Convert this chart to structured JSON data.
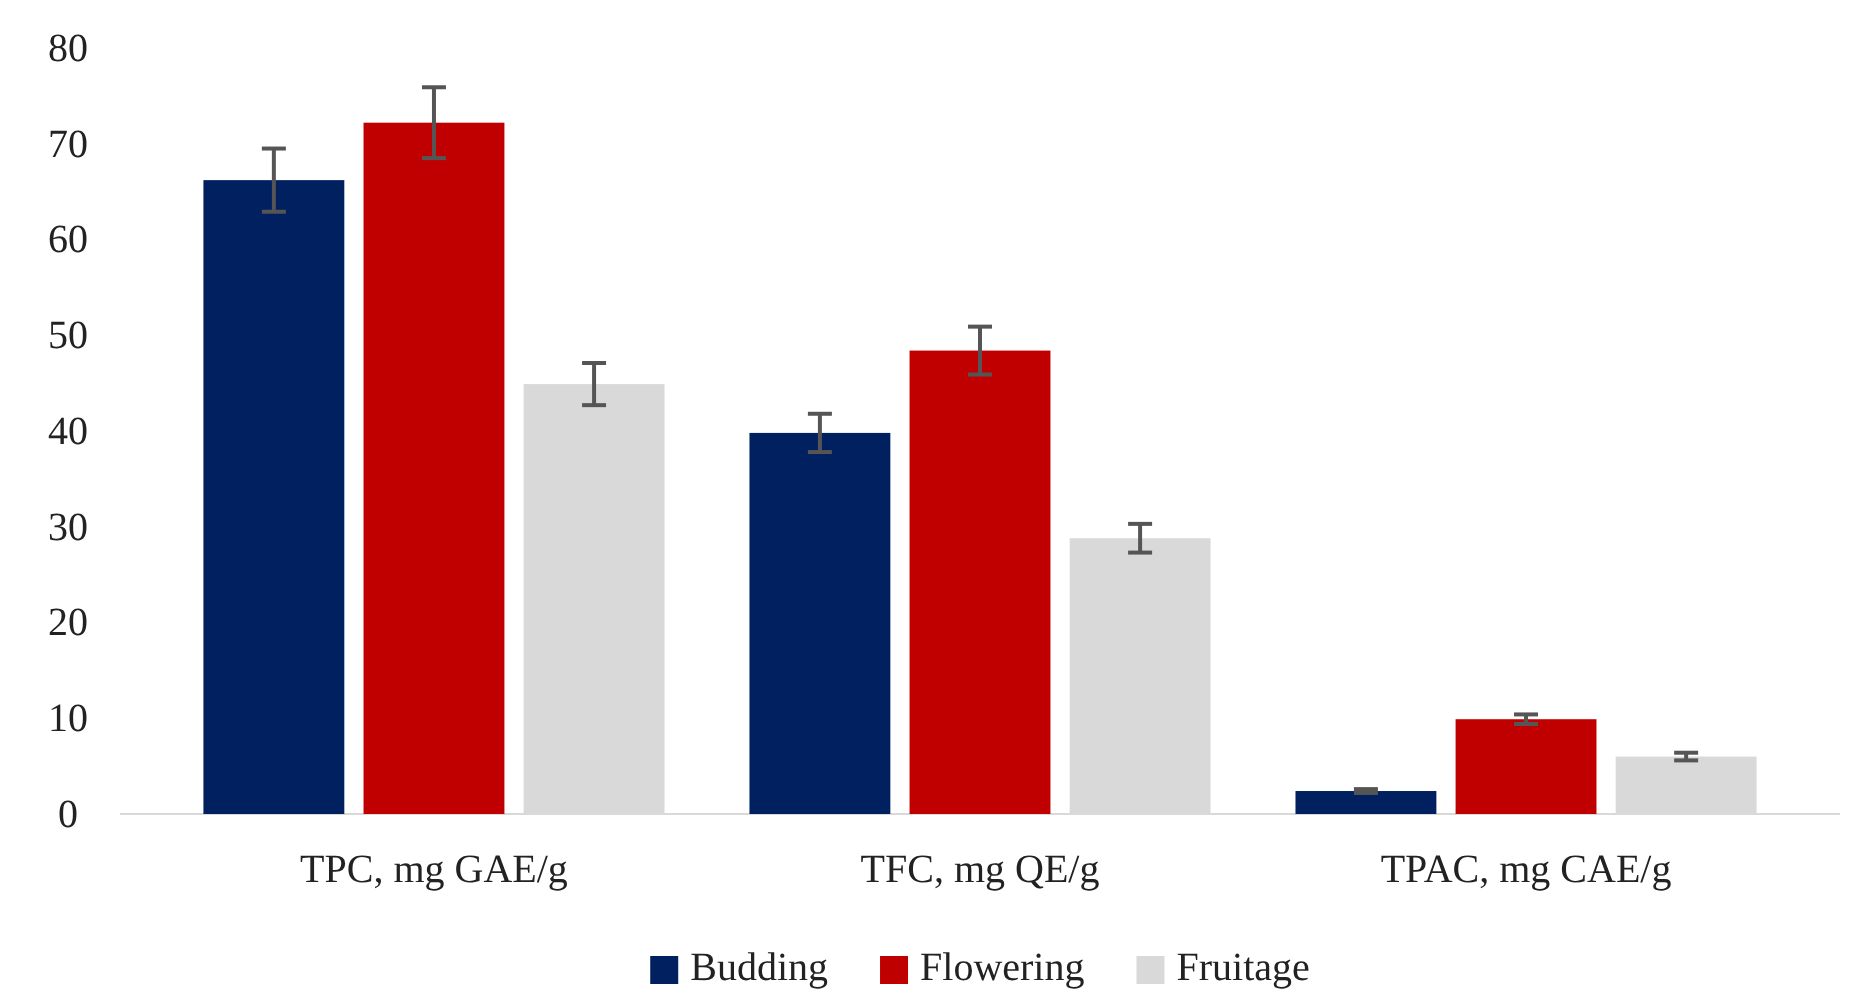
{
  "chart_data": {
    "type": "bar",
    "categories": [
      "TPC, mg GAE/g",
      "TFC, mg QE/g",
      "TPAC, mg CAE/g"
    ],
    "series": [
      {
        "name": "Budding",
        "color": "#002060",
        "values": [
          66.2,
          39.8,
          2.4
        ],
        "errors": [
          3.3,
          2,
          0.2
        ]
      },
      {
        "name": "Flowering",
        "color": "#c00000",
        "values": [
          72.2,
          48.4,
          9.9
        ],
        "errors": [
          3.7,
          2.5,
          0.5
        ]
      },
      {
        "name": "Fruitage",
        "color": "#d9d9d9",
        "values": [
          44.9,
          28.8,
          6.0
        ],
        "errors": [
          2.2,
          1.5,
          0.4
        ]
      }
    ],
    "ylim": [
      0,
      80
    ],
    "yticks": [
      0,
      10,
      20,
      30,
      40,
      50,
      60,
      70,
      80
    ],
    "grid": false,
    "legend": "bottom"
  }
}
